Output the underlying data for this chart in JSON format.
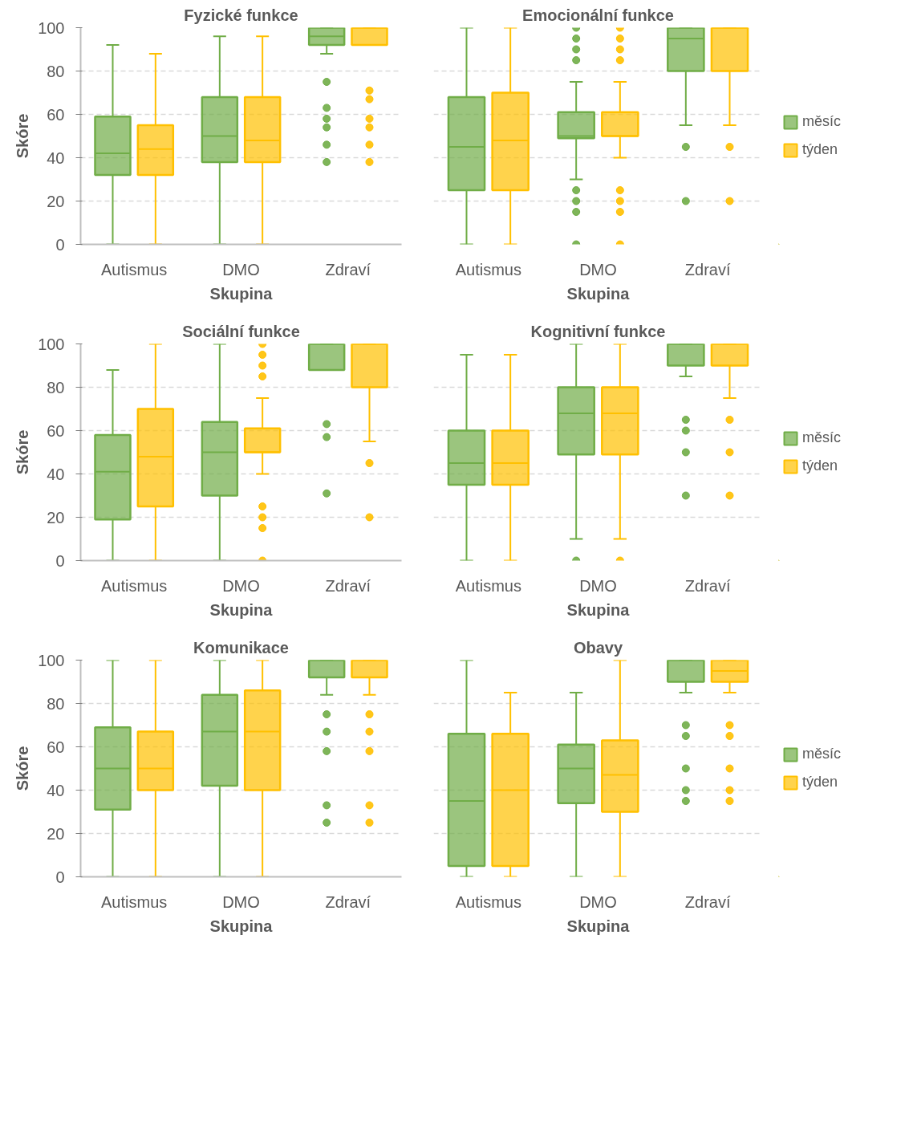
{
  "chart_data": [
    {
      "type": "box",
      "title": "Fyzické funkce",
      "xlabel": "Skupina",
      "ylabel": "Skóre",
      "categories": [
        "Autismus",
        "DMO",
        "Zdraví"
      ],
      "ylim": [
        0,
        100
      ],
      "yticks": [
        0,
        20,
        40,
        60,
        80,
        100
      ],
      "grid": "y",
      "legend": false,
      "series": [
        {
          "color": "#70ad47",
          "boxes": [
            {
              "low": 0,
              "q1": 32,
              "median": 42,
              "q3": 59,
              "high": 92
            },
            {
              "low": 0,
              "q1": 38,
              "median": 50,
              "q3": 68,
              "high": 96
            },
            {
              "low": 88,
              "q1": 92,
              "median": 96,
              "q3": 100,
              "high": 100,
              "outliers": [
                75,
                63,
                58,
                54,
                46,
                38
              ]
            }
          ]
        },
        {
          "color": "#ffc000",
          "boxes": [
            {
              "low": 0,
              "q1": 32,
              "median": 44,
              "q3": 55,
              "high": 88
            },
            {
              "low": 0,
              "q1": 38,
              "median": 48,
              "q3": 68,
              "high": 96
            },
            {
              "low": 92,
              "q1": 92,
              "median": 100,
              "q3": 100,
              "high": 100,
              "outliers": [
                71,
                67,
                58,
                54,
                46,
                38
              ]
            }
          ]
        }
      ]
    },
    {
      "type": "box",
      "title": "Emocionální funkce",
      "xlabel": "Skupina",
      "categories": [
        "Autismus",
        "DMO",
        "Zdraví"
      ],
      "ylim": [
        0,
        100
      ],
      "yticks": [
        0,
        20,
        40,
        60,
        80,
        100
      ],
      "grid": "y",
      "legend": "right",
      "tick_labels": "x",
      "series": [
        {
          "name": "měsíc",
          "color": "#70ad47",
          "boxes": [
            {
              "low": 0,
              "q1": 25,
              "median": 45,
              "q3": 68,
              "high": 100
            },
            {
              "low": 30,
              "q1": 49,
              "median": 50,
              "q3": 61,
              "high": 75,
              "outliers": [
                100,
                95,
                90,
                85,
                25,
                20,
                15,
                0
              ]
            },
            {
              "low": 55,
              "q1": 80,
              "median": 95,
              "q3": 100,
              "high": 100,
              "outliers": [
                45,
                20
              ]
            }
          ]
        },
        {
          "name": "týden",
          "color": "#ffc000",
          "boxes": [
            {
              "low": 0,
              "q1": 25,
              "median": 48,
              "q3": 70,
              "high": 100
            },
            {
              "low": 40,
              "q1": 50,
              "median": 50,
              "q3": 61,
              "high": 75,
              "outliers": [
                100,
                95,
                90,
                85,
                25,
                20,
                15,
                0
              ]
            },
            {
              "low": 55,
              "q1": 80,
              "median": 100,
              "q3": 100,
              "high": 100,
              "outliers": [
                45,
                20
              ]
            }
          ]
        }
      ]
    },
    {
      "type": "box",
      "title": "Sociální funkce",
      "xlabel": "Skupina",
      "ylabel": "Skóre",
      "categories": [
        "Autismus",
        "DMO",
        "Zdraví"
      ],
      "ylim": [
        0,
        100
      ],
      "yticks": [
        0,
        20,
        40,
        60,
        80,
        100
      ],
      "grid": "y",
      "legend": false,
      "series": [
        {
          "color": "#70ad47",
          "boxes": [
            {
              "low": 0,
              "q1": 19,
              "median": 41,
              "q3": 58,
              "high": 88
            },
            {
              "low": 0,
              "q1": 30,
              "median": 50,
              "q3": 64,
              "high": 100
            },
            {
              "low": 88,
              "q1": 88,
              "median": 100,
              "q3": 100,
              "high": 100,
              "outliers": [
                63,
                57,
                31
              ]
            }
          ]
        },
        {
          "color": "#ffc000",
          "boxes": [
            {
              "low": 0,
              "q1": 25,
              "median": 48,
              "q3": 70,
              "high": 100
            },
            {
              "low": 40,
              "q1": 50,
              "median": 50,
              "q3": 61,
              "high": 75,
              "outliers": [
                100,
                95,
                90,
                85,
                25,
                20,
                15,
                0
              ]
            },
            {
              "low": 55,
              "q1": 80,
              "median": 100,
              "q3": 100,
              "high": 100,
              "outliers": [
                45,
                20
              ]
            }
          ]
        }
      ]
    },
    {
      "type": "box",
      "title": "Kognitivní funkce",
      "xlabel": "Skupina",
      "categories": [
        "Autismus",
        "DMO",
        "Zdraví"
      ],
      "ylim": [
        0,
        100
      ],
      "yticks": [
        0,
        20,
        40,
        60,
        80,
        100
      ],
      "grid": "y",
      "legend": "right",
      "tick_labels": "x",
      "series": [
        {
          "name": "měsíc",
          "color": "#70ad47",
          "boxes": [
            {
              "low": 0,
              "q1": 35,
              "median": 45,
              "q3": 60,
              "high": 95
            },
            {
              "low": 10,
              "q1": 49,
              "median": 68,
              "q3": 80,
              "high": 100,
              "outliers": [
                0
              ]
            },
            {
              "low": 85,
              "q1": 90,
              "median": 100,
              "q3": 100,
              "high": 100,
              "outliers": [
                65,
                60,
                50,
                30
              ]
            }
          ]
        },
        {
          "name": "týden",
          "color": "#ffc000",
          "boxes": [
            {
              "low": 0,
              "q1": 35,
              "median": 45,
              "q3": 60,
              "high": 95
            },
            {
              "low": 10,
              "q1": 49,
              "median": 68,
              "q3": 80,
              "high": 100,
              "outliers": [
                0
              ]
            },
            {
              "low": 75,
              "q1": 90,
              "median": 100,
              "q3": 100,
              "high": 100,
              "outliers": [
                65,
                50,
                30
              ]
            }
          ]
        }
      ]
    },
    {
      "type": "box",
      "title": "Komunikace",
      "xlabel": "Skupina",
      "ylabel": "Skóre",
      "categories": [
        "Autismus",
        "DMO",
        "Zdraví"
      ],
      "ylim": [
        0,
        100
      ],
      "yticks": [
        0,
        20,
        40,
        60,
        80,
        100
      ],
      "grid": "y",
      "legend": false,
      "series": [
        {
          "color": "#70ad47",
          "boxes": [
            {
              "low": 0,
              "q1": 31,
              "median": 50,
              "q3": 69,
              "high": 100
            },
            {
              "low": 0,
              "q1": 42,
              "median": 67,
              "q3": 84,
              "high": 100
            },
            {
              "low": 84,
              "q1": 92,
              "median": 100,
              "q3": 100,
              "high": 100,
              "outliers": [
                75,
                67,
                58,
                33,
                25
              ]
            }
          ]
        },
        {
          "color": "#ffc000",
          "boxes": [
            {
              "low": 0,
              "q1": 40,
              "median": 50,
              "q3": 67,
              "high": 100
            },
            {
              "low": 0,
              "q1": 40,
              "median": 67,
              "q3": 86,
              "high": 100
            },
            {
              "low": 84,
              "q1": 92,
              "median": 100,
              "q3": 100,
              "high": 100,
              "outliers": [
                75,
                67,
                58,
                33,
                25
              ]
            }
          ]
        }
      ]
    },
    {
      "type": "box",
      "title": "Obavy",
      "xlabel": "Skupina",
      "categories": [
        "Autismus",
        "DMO",
        "Zdraví"
      ],
      "ylim": [
        0,
        100
      ],
      "yticks": [
        0,
        20,
        40,
        60,
        80,
        100
      ],
      "grid": "y",
      "legend": "right",
      "tick_labels": "x",
      "series": [
        {
          "name": "měsíc",
          "color": "#70ad47",
          "boxes": [
            {
              "low": 0,
              "q1": 5,
              "median": 35,
              "q3": 66,
              "high": 100
            },
            {
              "low": 0,
              "q1": 34,
              "median": 50,
              "q3": 61,
              "high": 85
            },
            {
              "low": 85,
              "q1": 90,
              "median": 100,
              "q3": 100,
              "high": 100,
              "outliers": [
                70,
                65,
                50,
                40,
                35
              ]
            }
          ]
        },
        {
          "name": "týden",
          "color": "#ffc000",
          "boxes": [
            {
              "low": 0,
              "q1": 5,
              "median": 40,
              "q3": 66,
              "high": 85
            },
            {
              "low": 0,
              "q1": 30,
              "median": 47,
              "q3": 63,
              "high": 100
            },
            {
              "low": 85,
              "q1": 90,
              "median": 95,
              "q3": 100,
              "high": 100,
              "outliers": [
                70,
                65,
                50,
                40,
                35
              ]
            }
          ]
        }
      ]
    }
  ]
}
